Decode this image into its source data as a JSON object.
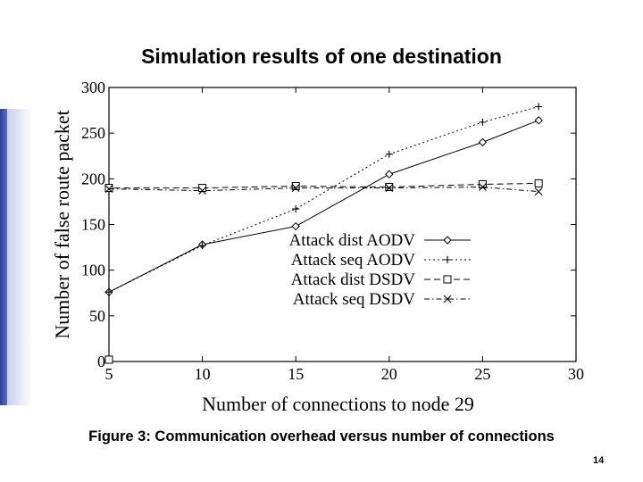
{
  "slide": {
    "title": "Simulation results of one destination",
    "caption": "Figure 3: Communication overhead versus number of connections",
    "page_number": "14"
  },
  "colors": {
    "line": "#000000",
    "accent_bar": "#2f3f9a"
  },
  "chart_data": {
    "type": "line",
    "title": "",
    "xlabel": "Number of connections to node 29",
    "ylabel": "Number of false route packet",
    "xlim": [
      5,
      30
    ],
    "ylim": [
      0,
      300
    ],
    "xticks": [
      "5",
      "10",
      "15",
      "20",
      "25",
      "30"
    ],
    "yticks": [
      "0",
      "50",
      "100",
      "150",
      "200",
      "250",
      "300"
    ],
    "grid": false,
    "legend_position": "center-right",
    "series": [
      {
        "name": "Attack dist AODV",
        "marker": "diamond",
        "dash": "solid",
        "x": [
          5,
          10,
          15,
          20,
          25,
          28
        ],
        "y": [
          76,
          128,
          148,
          205,
          240,
          264
        ]
      },
      {
        "name": "Attack seq AODV",
        "marker": "plus",
        "dash": "dotted",
        "x": [
          5,
          10,
          15,
          20,
          25,
          28
        ],
        "y": [
          76,
          127,
          167,
          227,
          262,
          279
        ]
      },
      {
        "name": "Attack dist DSDV",
        "marker": "square",
        "dash": "dashed",
        "x": [
          5,
          5,
          10,
          15,
          20,
          25,
          28
        ],
        "y": [
          2,
          190,
          190,
          192,
          191,
          194,
          195
        ]
      },
      {
        "name": "Attack seq DSDV",
        "marker": "cross",
        "dash": "dashdot",
        "x": [
          5,
          10,
          15,
          20,
          25,
          28
        ],
        "y": [
          189,
          187,
          190,
          190,
          191,
          186
        ]
      }
    ]
  }
}
